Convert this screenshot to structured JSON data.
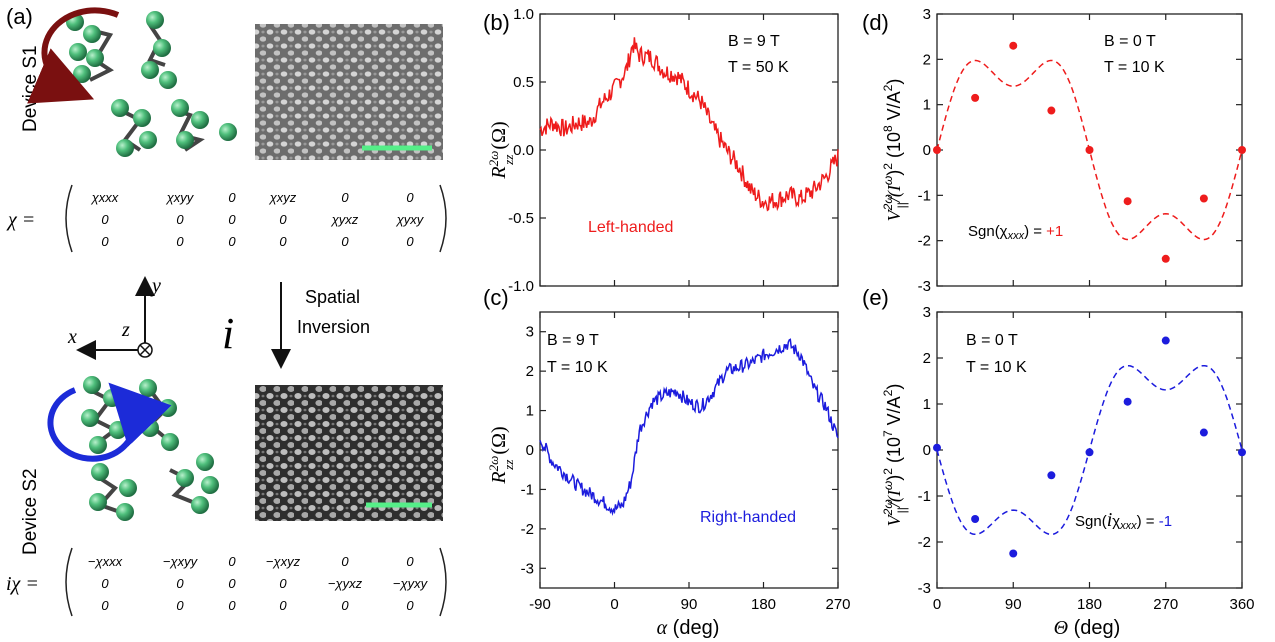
{
  "panel_labels": {
    "a": "(a)",
    "b": "(b)",
    "c": "(c)",
    "d": "(d)",
    "e": "(e)"
  },
  "device_s1": "Device S1",
  "device_s2": "Device S2",
  "tensor_s1": {
    "lhs": "χ =",
    "rows": [
      [
        "χxxx",
        "χxyy",
        "0",
        "χxyz",
        "0",
        "0"
      ],
      [
        "0",
        "0",
        "0",
        "0",
        "χyxz",
        "χyxy"
      ],
      [
        "0",
        "0",
        "0",
        "0",
        "0",
        "0"
      ]
    ]
  },
  "tensor_s2": {
    "lhs": "iχ =",
    "rows": [
      [
        "−χxxx",
        "−χxyy",
        "0",
        "−χxyz",
        "0",
        "0"
      ],
      [
        "0",
        "0",
        "0",
        "0",
        "−χyxz",
        "−χyxy"
      ],
      [
        "0",
        "0",
        "0",
        "0",
        "0",
        "0"
      ]
    ]
  },
  "axes": {
    "x": "x",
    "y": "y",
    "z": "z"
  },
  "inversion": {
    "symbol": "i",
    "line1": "Spatial",
    "line2": "Inversion"
  },
  "colors": {
    "red": "#ee1c1c",
    "blue": "#1c1cdd",
    "green": "#5ccf8a",
    "sphere": "#3aa56a"
  },
  "chart_data": [
    {
      "id": "b",
      "type": "line",
      "ylabel": "R_zz^2ω (Ω)",
      "xlim": [
        -90,
        270
      ],
      "ylim": [
        -1.0,
        1.0
      ],
      "yticks": [
        "-1.0",
        "-0.5",
        "0.0",
        "0.5",
        "1.0"
      ],
      "annotation": [
        "B = 9 T",
        "T = 50 K"
      ],
      "series_label": "Left-handed",
      "anchors_x": [
        -90,
        -75,
        -60,
        -45,
        -30,
        -15,
        0,
        15,
        22,
        30,
        45,
        60,
        75,
        90,
        105,
        120,
        135,
        150,
        165,
        180,
        195,
        210,
        225,
        240,
        255,
        270
      ],
      "anchors_y": [
        0.15,
        0.2,
        0.15,
        0.2,
        0.2,
        0.35,
        0.45,
        0.6,
        0.78,
        0.7,
        0.68,
        0.58,
        0.55,
        0.45,
        0.35,
        0.15,
        0.0,
        -0.12,
        -0.3,
        -0.38,
        -0.37,
        -0.33,
        -0.36,
        -0.3,
        -0.2,
        -0.05
      ]
    },
    {
      "id": "c",
      "type": "line",
      "ylabel": "R_zz^2ω (Ω)",
      "xlabel": "α (deg)",
      "xlim": [
        -90,
        270
      ],
      "ylim": [
        -3.5,
        3.5
      ],
      "xticks": [
        "-90",
        "0",
        "90",
        "180",
        "270"
      ],
      "yticks": [
        "-3",
        "-2",
        "-1",
        "0",
        "1",
        "2",
        "3"
      ],
      "annotation": [
        "B = 9 T",
        "T = 10 K"
      ],
      "series_label": "Right-handed",
      "anchors_x": [
        -90,
        -75,
        -60,
        -45,
        -30,
        -15,
        0,
        10,
        20,
        30,
        45,
        60,
        75,
        90,
        105,
        120,
        135,
        150,
        165,
        180,
        195,
        210,
        225,
        240,
        255,
        270
      ],
      "anchors_y": [
        0.3,
        -0.3,
        -0.6,
        -0.9,
        -1.1,
        -1.3,
        -1.5,
        -1.4,
        -0.8,
        0.5,
        1.2,
        1.4,
        1.5,
        1.2,
        1.1,
        1.5,
        2.0,
        2.1,
        2.2,
        2.4,
        2.55,
        2.7,
        2.4,
        1.6,
        1.1,
        0.3
      ]
    },
    {
      "id": "d",
      "type": "scatter",
      "ylabel": "V_||^2ω/(I^ω)² (10⁸ V/A²)",
      "xlim": [
        0,
        360
      ],
      "ylim": [
        -3,
        3
      ],
      "yticks": [
        "-3",
        "-2",
        "-1",
        "0",
        "1",
        "2",
        "3"
      ],
      "annotation": [
        "B = 0 T",
        "T = 10 K"
      ],
      "sign_prefix": "Sgn(χ",
      "sign_sub": "xxx",
      "sign_eq": ") = ",
      "sign_value": "+1",
      "points_x": [
        0,
        45,
        90,
        135,
        180,
        225,
        270,
        315,
        360
      ],
      "points_y": [
        0,
        1.15,
        2.3,
        0.87,
        0,
        -1.13,
        -2.4,
        -1.07,
        0
      ],
      "fit_amplitude": 2.1
    },
    {
      "id": "e",
      "type": "scatter",
      "ylabel": "V_||^2ω/(I^ω)² (10⁷ V/A²)",
      "xlabel": "Θ (deg)",
      "xlim": [
        0,
        360
      ],
      "ylim": [
        -3,
        3
      ],
      "xticks": [
        "0",
        "90",
        "180",
        "270",
        "360"
      ],
      "yticks": [
        "-3",
        "-2",
        "-1",
        "0",
        "1",
        "2",
        "3"
      ],
      "annotation": [
        "B = 0 T",
        "T = 10 K"
      ],
      "sign_prefix": "Sgn(",
      "sign_i": "i",
      "sign_chi": "χ",
      "sign_sub": "xxx",
      "sign_eq": ") = ",
      "sign_value": "-1",
      "points_x": [
        0,
        45,
        90,
        135,
        180,
        225,
        270,
        315,
        360
      ],
      "points_y": [
        0.05,
        -1.5,
        -2.25,
        -0.55,
        -0.05,
        1.05,
        2.38,
        0.38,
        -0.05
      ],
      "fit_amplitude": -1.95
    }
  ]
}
